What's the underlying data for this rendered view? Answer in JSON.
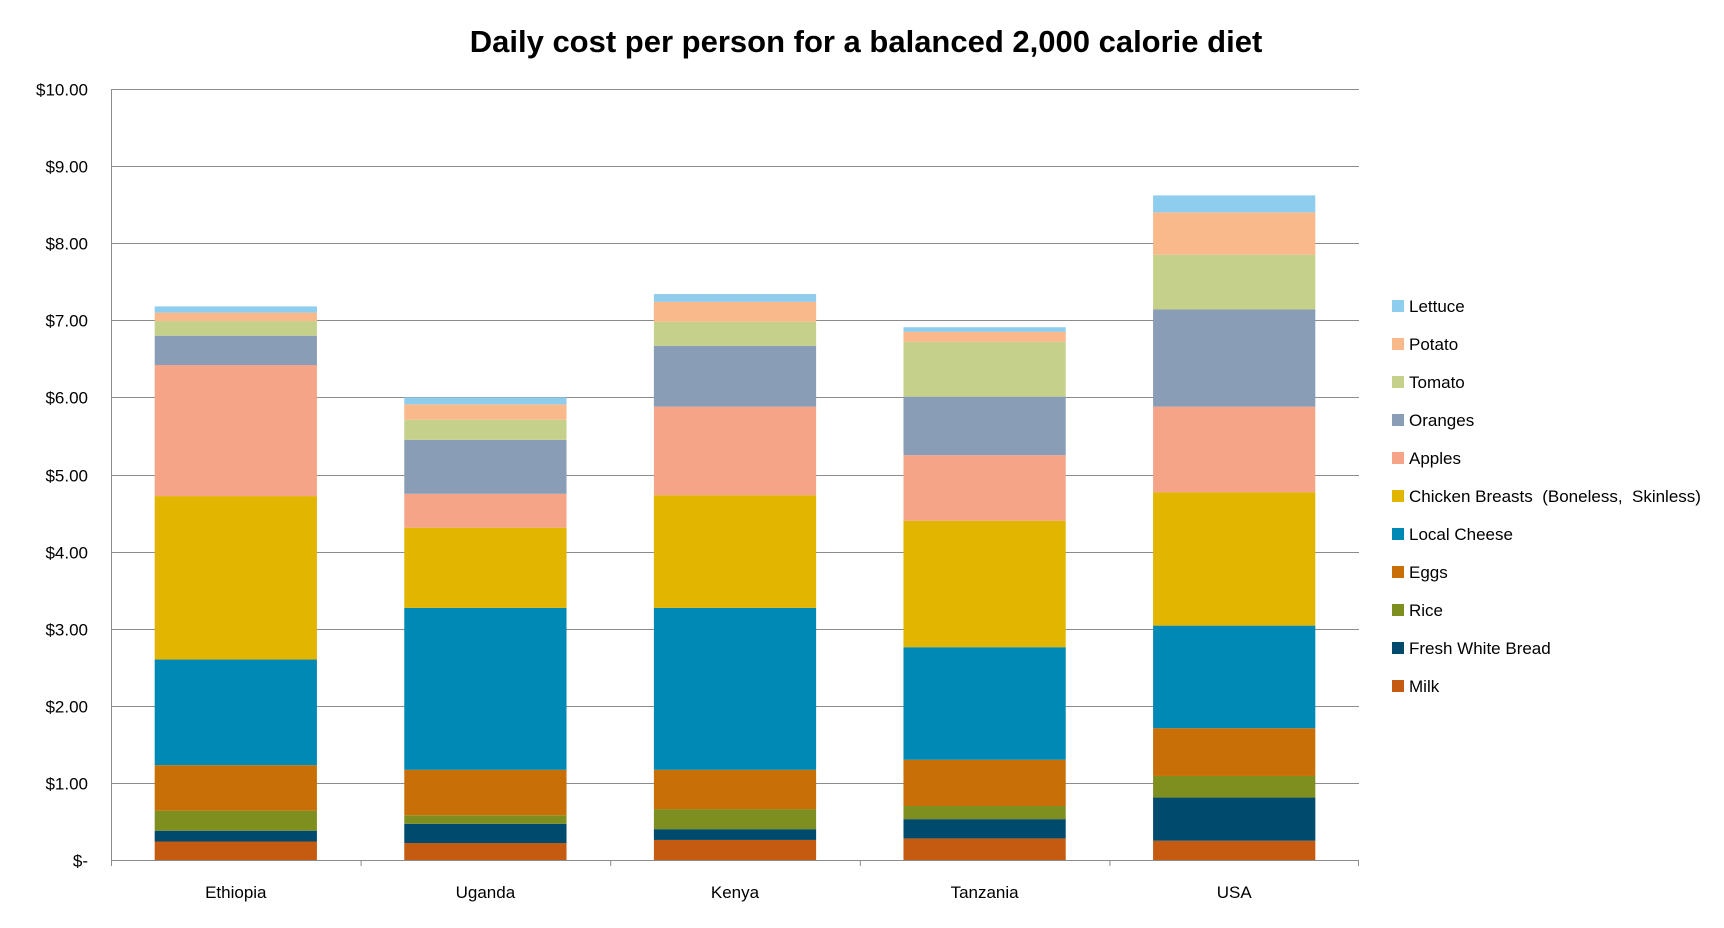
{
  "chart_data": {
    "type": "bar",
    "stacked": true,
    "title": "Daily cost per person for a balanced 2,000 calorie diet",
    "xlabel": "",
    "ylabel": "",
    "ylim": [
      0,
      10
    ],
    "yticks": [
      0,
      1,
      2,
      3,
      4,
      5,
      6,
      7,
      8,
      9,
      10
    ],
    "ytick_labels": [
      "$-",
      "$1.00",
      "$2.00",
      "$3.00",
      "$4.00",
      "$5.00",
      "$6.00",
      "$7.00",
      "$8.00",
      "$9.00",
      "$10.00"
    ],
    "grid": "horizontal",
    "legend_position": "right",
    "categories": [
      "Ethiopia",
      "Uganda",
      "Kenya",
      "Tanzania",
      "USA"
    ],
    "series": [
      {
        "name": "Milk",
        "color": "#C55A11",
        "values": [
          0.24,
          0.22,
          0.26,
          0.28,
          0.25
        ]
      },
      {
        "name": "Fresh White Bread",
        "color": "#004A6E",
        "values": [
          0.14,
          0.25,
          0.14,
          0.25,
          0.56
        ]
      },
      {
        "name": "Rice",
        "color": "#7F8F1F",
        "values": [
          0.26,
          0.11,
          0.26,
          0.17,
          0.28
        ]
      },
      {
        "name": "Eggs",
        "color": "#C86F08",
        "values": [
          0.59,
          0.59,
          0.51,
          0.6,
          0.62
        ]
      },
      {
        "name": "Local Cheese",
        "color": "#0089B4",
        "values": [
          1.37,
          2.1,
          2.1,
          1.46,
          1.33
        ]
      },
      {
        "name": "Chicken Breasts  (Boneless,  Skinless)",
        "color": "#E1B500",
        "values": [
          2.12,
          1.04,
          1.46,
          1.64,
          1.73
        ]
      },
      {
        "name": "Apples",
        "color": "#F5A488",
        "values": [
          1.7,
          0.44,
          1.15,
          0.85,
          1.11
        ]
      },
      {
        "name": "Oranges",
        "color": "#899DB6",
        "values": [
          0.38,
          0.7,
          0.79,
          0.76,
          1.26
        ]
      },
      {
        "name": "Tomato",
        "color": "#C5D18B",
        "values": [
          0.19,
          0.26,
          0.31,
          0.71,
          0.71
        ]
      },
      {
        "name": "Potato",
        "color": "#F9B98A",
        "values": [
          0.11,
          0.2,
          0.26,
          0.13,
          0.55
        ]
      },
      {
        "name": "Lettuce",
        "color": "#8ECDEE",
        "values": [
          0.08,
          0.09,
          0.1,
          0.06,
          0.22
        ]
      }
    ]
  }
}
